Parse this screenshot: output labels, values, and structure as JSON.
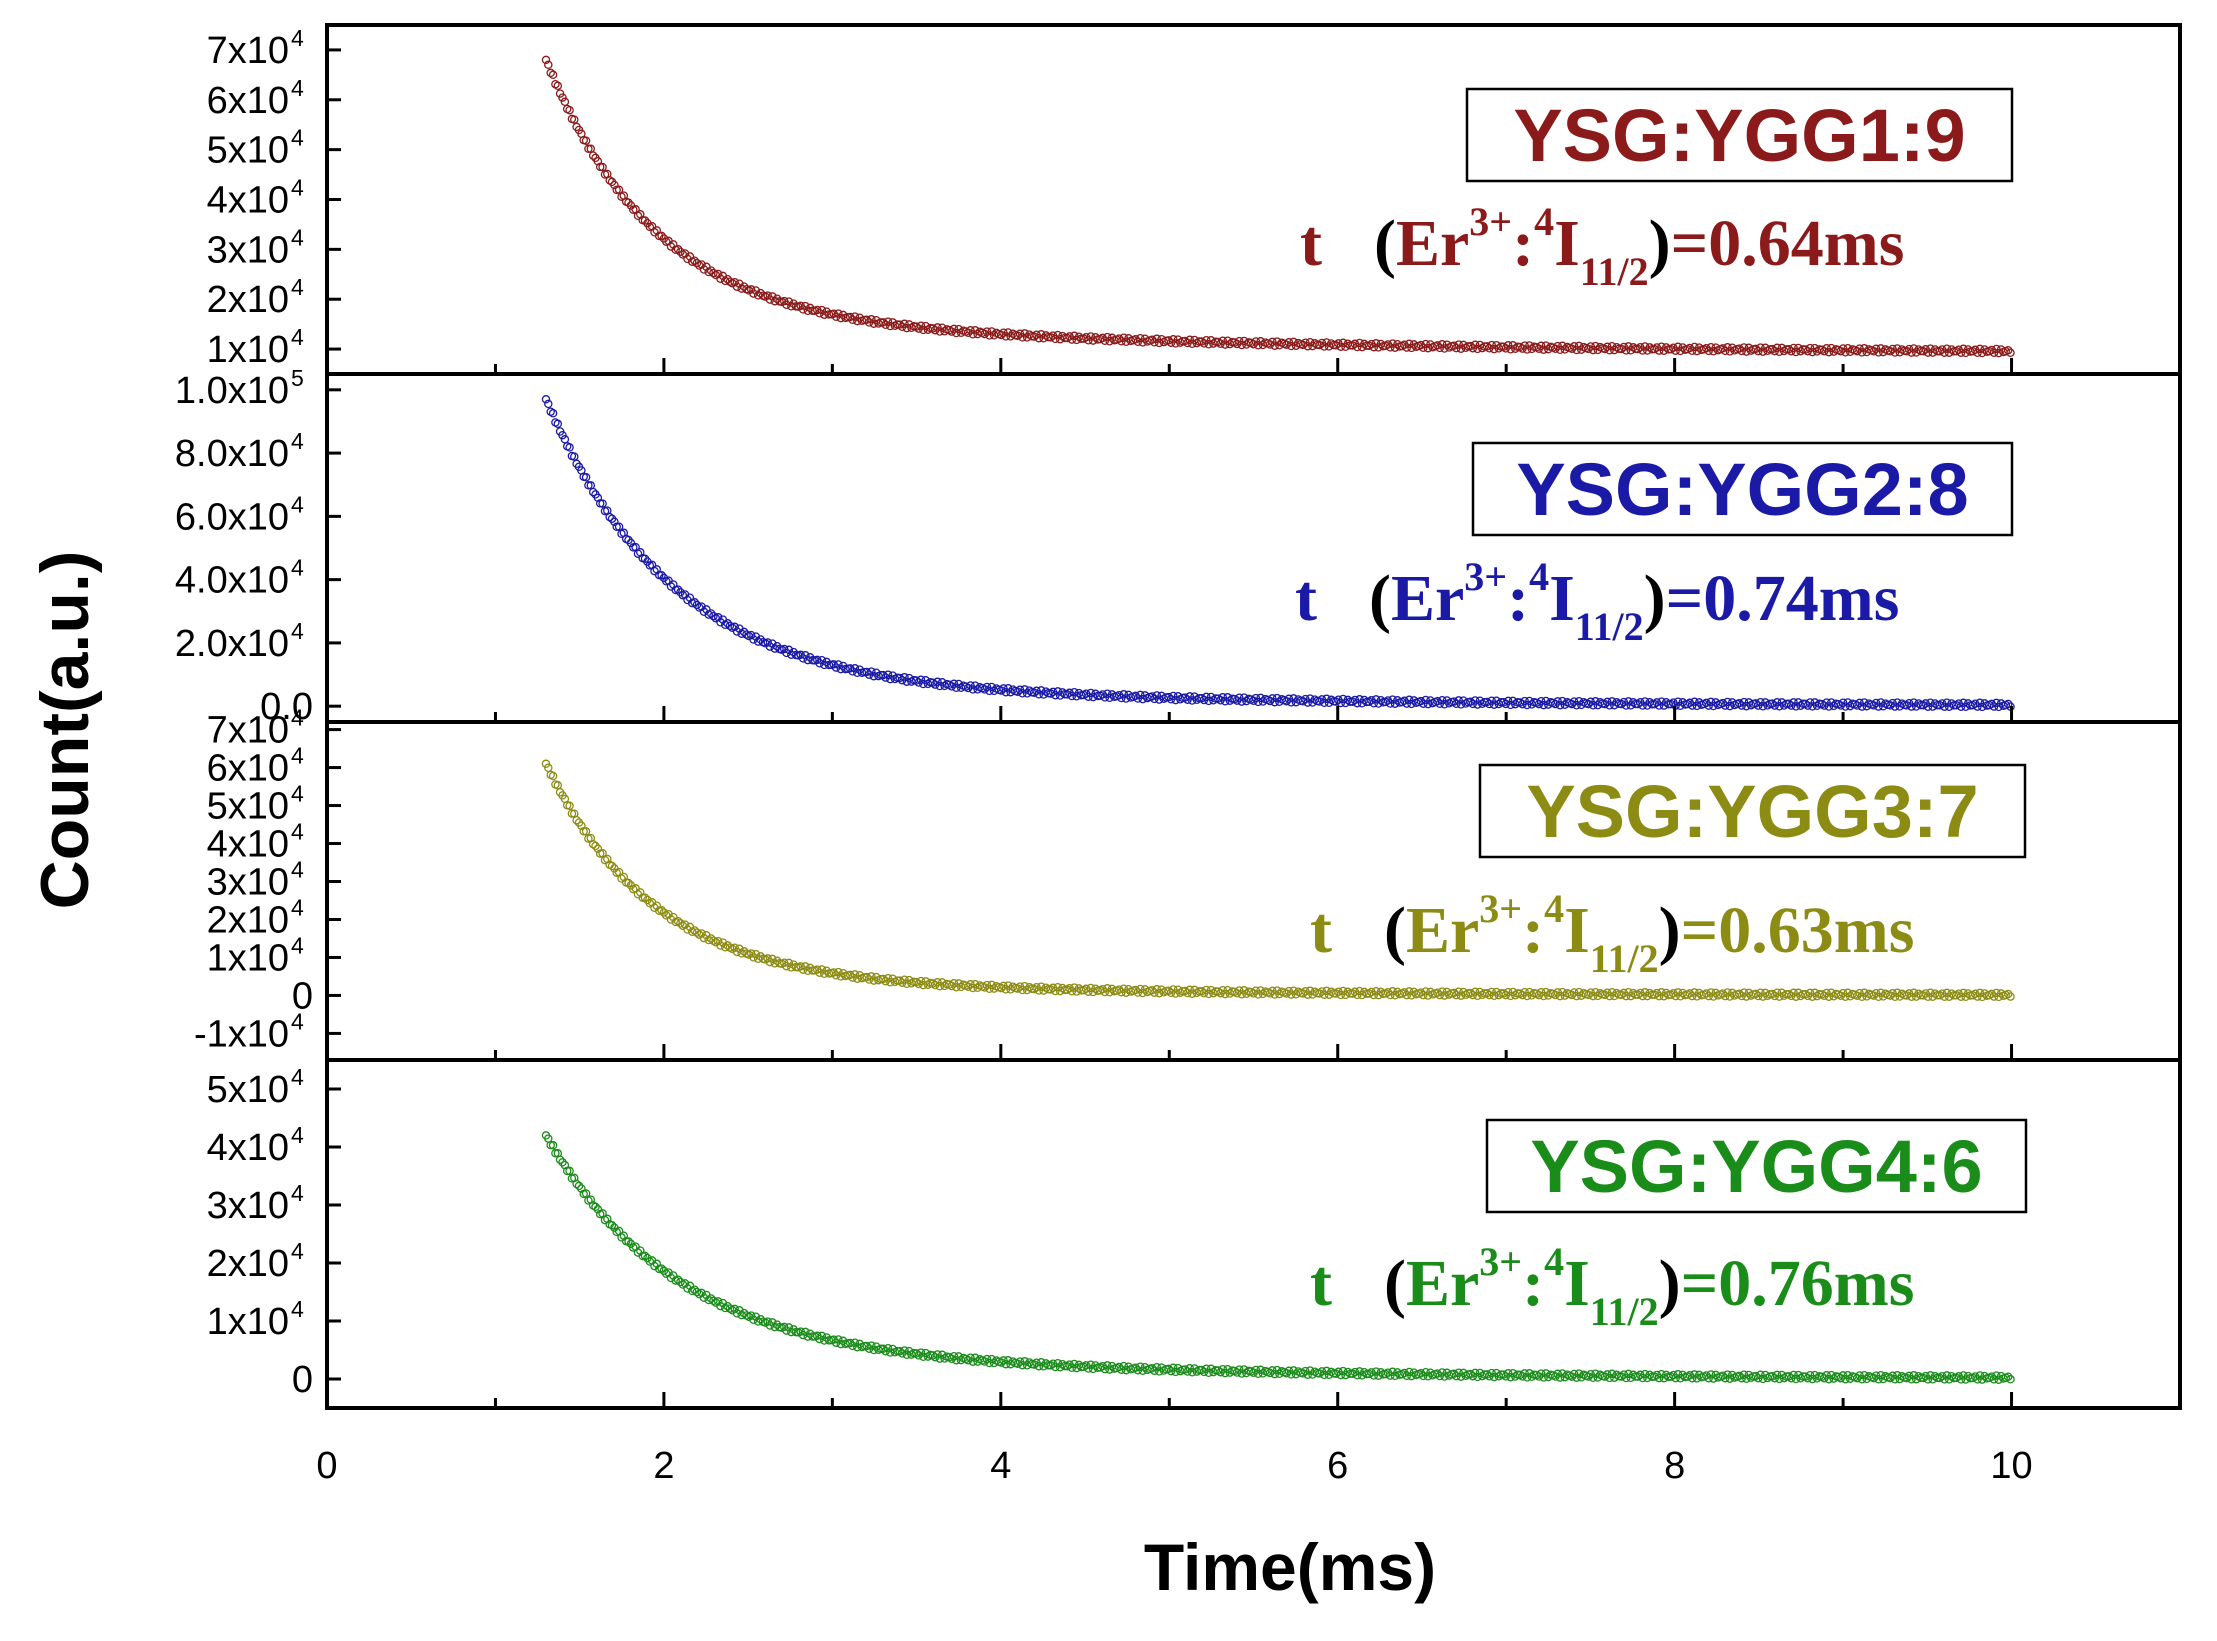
{
  "chart_data": {
    "type": "scatter",
    "xlabel": "Time(ms)",
    "ylabel": "Count(a.u.)",
    "xlim": [
      0,
      11
    ],
    "x_ticks": [
      "0",
      "2",
      "4",
      "6",
      "8",
      "10"
    ],
    "panels": [
      {
        "name": "YSG:YGG1:9",
        "color": "#8b1a1a",
        "ylim": [
          5000,
          75000
        ],
        "y_ticks": [
          {
            "value": 10000,
            "mantissa": "1x10",
            "exp": "4"
          },
          {
            "value": 20000,
            "mantissa": "2x10",
            "exp": "4"
          },
          {
            "value": 30000,
            "mantissa": "3x10",
            "exp": "4"
          },
          {
            "value": 40000,
            "mantissa": "4x10",
            "exp": "4"
          },
          {
            "value": 50000,
            "mantissa": "5x10",
            "exp": "4"
          },
          {
            "value": 60000,
            "mantissa": "6x10",
            "exp": "4"
          },
          {
            "value": 70000,
            "mantissa": "7x10",
            "exp": "4"
          }
        ],
        "decay": {
          "t_start": 1.3,
          "t_end": 10.0,
          "initial": 68000,
          "baseline": 9000,
          "fast_tau_ms": 0.64,
          "slow_amp": 7000,
          "slow_tau_ms": 3.5
        },
        "legend_title": "YSG:YGG1:9",
        "legend_tau": {
          "t": "t",
          "open": "(",
          "er": "Er",
          "sup1": "3+",
          "colon": ":",
          "sup2": "4",
          "I": "I",
          "sub": "11/2",
          "close": ")",
          "value": "=0.64ms"
        }
      },
      {
        "name": "YSG:YGG2:8",
        "color": "#1a1aa6",
        "ylim": [
          -5000,
          105000
        ],
        "y_ticks": [
          {
            "value": 0,
            "mantissa": "0.0",
            "exp": ""
          },
          {
            "value": 20000,
            "mantissa": "2.0x10",
            "exp": "4"
          },
          {
            "value": 40000,
            "mantissa": "4.0x10",
            "exp": "4"
          },
          {
            "value": 60000,
            "mantissa": "6.0x10",
            "exp": "4"
          },
          {
            "value": 80000,
            "mantissa": "8.0x10",
            "exp": "4"
          },
          {
            "value": 100000,
            "mantissa": "1.0x10",
            "exp": "5"
          }
        ],
        "decay": {
          "t_start": 1.3,
          "t_end": 10.0,
          "initial": 97000,
          "baseline": 0,
          "fast_tau_ms": 0.74,
          "slow_amp": 7000,
          "slow_tau_ms": 3.0
        },
        "legend_title": "YSG:YGG2:8",
        "legend_tau": {
          "t": "t",
          "open": "(",
          "er": "Er",
          "sup1": "3+",
          "colon": ":",
          "sup2": "4",
          "I": "I",
          "sub": "11/2",
          "close": ")",
          "value": "=0.74ms"
        }
      },
      {
        "name": "YSG:YGG3:7",
        "color": "#8c8c14",
        "ylim": [
          -17000,
          72000
        ],
        "y_ticks": [
          {
            "value": -10000,
            "mantissa": "-1x10",
            "exp": "4"
          },
          {
            "value": 0,
            "mantissa": "0",
            "exp": ""
          },
          {
            "value": 10000,
            "mantissa": "1x10",
            "exp": "4"
          },
          {
            "value": 20000,
            "mantissa": "2x10",
            "exp": "4"
          },
          {
            "value": 30000,
            "mantissa": "3x10",
            "exp": "4"
          },
          {
            "value": 40000,
            "mantissa": "4x10",
            "exp": "4"
          },
          {
            "value": 50000,
            "mantissa": "5x10",
            "exp": "4"
          },
          {
            "value": 60000,
            "mantissa": "6x10",
            "exp": "4"
          },
          {
            "value": 70000,
            "mantissa": "7x10",
            "exp": "4"
          }
        ],
        "decay": {
          "t_start": 1.3,
          "t_end": 10.0,
          "initial": 61000,
          "baseline": 0,
          "fast_tau_ms": 0.63,
          "slow_amp": 4000,
          "slow_tau_ms": 2.5
        },
        "legend_title": "YSG:YGG3:7",
        "legend_tau": {
          "t": "t",
          "open": "(",
          "er": "Er",
          "sup1": "3+",
          "colon": ":",
          "sup2": "4",
          "I": "I",
          "sub": "11/2",
          "close": ")",
          "value": "=0.63ms"
        }
      },
      {
        "name": "YSG:YGG4:6",
        "color": "#1a8c1a",
        "ylim": [
          -5000,
          55000
        ],
        "y_ticks": [
          {
            "value": 0,
            "mantissa": "0",
            "exp": ""
          },
          {
            "value": 10000,
            "mantissa": "1x10",
            "exp": "4"
          },
          {
            "value": 20000,
            "mantissa": "2x10",
            "exp": "4"
          },
          {
            "value": 30000,
            "mantissa": "3x10",
            "exp": "4"
          },
          {
            "value": 40000,
            "mantissa": "4x10",
            "exp": "4"
          },
          {
            "value": 50000,
            "mantissa": "5x10",
            "exp": "4"
          }
        ],
        "decay": {
          "t_start": 1.3,
          "t_end": 10.0,
          "initial": 42000,
          "baseline": 0,
          "fast_tau_ms": 0.76,
          "slow_amp": 5000,
          "slow_tau_ms": 2.8
        },
        "legend_title": "YSG:YGG4:6",
        "legend_tau": {
          "t": "t",
          "open": "(",
          "er": "Er",
          "sup1": "3+",
          "colon": ":",
          "sup2": "4",
          "I": "I",
          "sub": "11/2",
          "close": ")",
          "value": "=0.76ms"
        }
      }
    ]
  }
}
